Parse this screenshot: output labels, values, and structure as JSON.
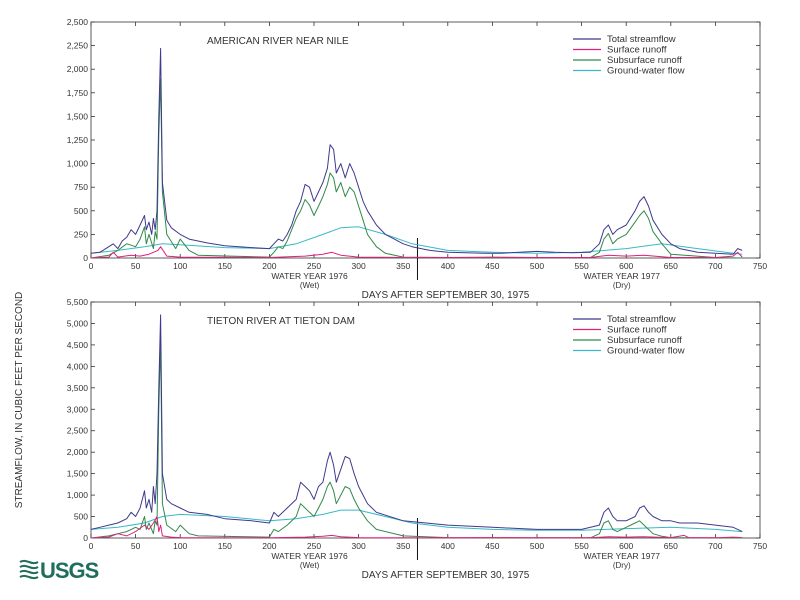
{
  "y_axis_label": "STREAMFLOW, IN CUBIC FEET PER SECOND",
  "logo": "USGS",
  "colors": {
    "total": "#3f3a8c",
    "surface": "#e0207a",
    "subsurface": "#2f8a4a",
    "groundwater": "#3ab8c8",
    "axis": "#333333",
    "logo": "#1f6e5a"
  },
  "chart_data": [
    {
      "type": "line",
      "title": "AMERICAN RIVER NEAR NILE",
      "xlabel": "DAYS AFTER SEPTEMBER 30, 1975",
      "ylabel": "STREAMFLOW, IN CUBIC FEET PER SECOND",
      "xlim": [
        0,
        750
      ],
      "ylim": [
        0,
        2500
      ],
      "xticks": [
        "0",
        "50",
        "100",
        "150",
        "200",
        "250",
        "300",
        "350",
        "400",
        "450",
        "500",
        "550",
        "600",
        "650",
        "700",
        "750"
      ],
      "yticks": [
        "0",
        "250",
        "500",
        "750",
        "1,000",
        "1,250",
        "1,500",
        "1,750",
        "2,000",
        "2,250",
        "2,500"
      ],
      "water_year_labels": [
        {
          "text": "WATER YEAR 1976",
          "sub": "(Wet)",
          "x": 245
        },
        {
          "text": "WATER YEAR 1977",
          "sub": "(Dry)",
          "x": 595
        }
      ],
      "divider_x": 366,
      "legend_position": "top-right",
      "series": [
        {
          "name": "Total streamflow",
          "color": "total",
          "x": [
            0,
            10,
            20,
            25,
            30,
            35,
            40,
            45,
            50,
            55,
            60,
            62,
            65,
            68,
            70,
            72,
            74,
            76,
            78,
            80,
            85,
            90,
            100,
            110,
            130,
            150,
            180,
            200,
            205,
            210,
            215,
            220,
            225,
            230,
            235,
            240,
            245,
            250,
            255,
            260,
            265,
            268,
            272,
            275,
            280,
            285,
            290,
            295,
            300,
            305,
            310,
            320,
            330,
            340,
            350,
            360,
            370,
            380,
            390,
            400,
            420,
            440,
            460,
            480,
            500,
            520,
            540,
            560,
            570,
            575,
            580,
            585,
            590,
            600,
            610,
            615,
            620,
            625,
            630,
            640,
            650,
            660,
            680,
            700,
            720,
            725,
            730
          ],
          "y": [
            50,
            60,
            120,
            150,
            100,
            180,
            220,
            300,
            250,
            350,
            450,
            300,
            380,
            250,
            420,
            300,
            500,
            1500,
            2220,
            800,
            400,
            320,
            250,
            200,
            160,
            130,
            110,
            100,
            150,
            200,
            180,
            250,
            350,
            500,
            600,
            780,
            750,
            600,
            700,
            800,
            950,
            1200,
            1150,
            900,
            1000,
            850,
            1000,
            900,
            750,
            600,
            500,
            350,
            250,
            200,
            150,
            120,
            100,
            80,
            70,
            60,
            55,
            50,
            50,
            60,
            70,
            60,
            55,
            60,
            150,
            300,
            350,
            250,
            300,
            350,
            500,
            600,
            650,
            550,
            400,
            250,
            150,
            100,
            60,
            50,
            40,
            100,
            80
          ]
        },
        {
          "name": "Surface runoff",
          "color": "surface",
          "x": [
            0,
            20,
            25,
            30,
            45,
            55,
            65,
            75,
            78,
            85,
            100,
            200,
            240,
            260,
            270,
            280,
            300,
            350,
            400,
            450,
            500,
            560,
            580,
            600,
            620,
            650,
            700,
            720,
            725,
            730
          ],
          "y": [
            0,
            10,
            60,
            10,
            30,
            20,
            40,
            80,
            120,
            20,
            10,
            5,
            20,
            40,
            60,
            30,
            10,
            5,
            5,
            10,
            5,
            5,
            30,
            20,
            30,
            5,
            5,
            20,
            60,
            10
          ]
        },
        {
          "name": "Subsurface runoff",
          "color": "subsurface",
          "x": [
            0,
            20,
            30,
            40,
            50,
            55,
            60,
            62,
            65,
            70,
            72,
            74,
            76,
            78,
            80,
            85,
            95,
            100,
            110,
            120,
            200,
            205,
            210,
            215,
            220,
            225,
            230,
            235,
            240,
            245,
            250,
            255,
            260,
            265,
            268,
            272,
            275,
            280,
            285,
            290,
            295,
            300,
            305,
            310,
            320,
            330,
            350,
            400,
            500,
            560,
            570,
            575,
            580,
            585,
            590,
            600,
            610,
            615,
            620,
            625,
            630,
            640,
            650,
            700,
            730
          ],
          "y": [
            0,
            30,
            80,
            150,
            120,
            200,
            330,
            150,
            250,
            100,
            280,
            200,
            1300,
            1900,
            700,
            250,
            100,
            200,
            80,
            30,
            10,
            60,
            120,
            100,
            180,
            300,
            420,
            500,
            620,
            560,
            450,
            550,
            650,
            780,
            900,
            850,
            700,
            800,
            650,
            750,
            700,
            550,
            400,
            250,
            120,
            50,
            10,
            5,
            5,
            5,
            60,
            200,
            260,
            150,
            200,
            250,
            380,
            450,
            500,
            420,
            280,
            150,
            40,
            5,
            0
          ]
        },
        {
          "name": "Ground-water flow",
          "color": "groundwater",
          "x": [
            0,
            30,
            60,
            80,
            100,
            150,
            200,
            230,
            260,
            280,
            300,
            330,
            360,
            400,
            450,
            500,
            550,
            600,
            640,
            680,
            720,
            730
          ],
          "y": [
            50,
            80,
            120,
            150,
            140,
            110,
            100,
            150,
            250,
            320,
            330,
            250,
            150,
            80,
            60,
            50,
            60,
            100,
            150,
            100,
            50,
            40
          ]
        }
      ]
    },
    {
      "type": "line",
      "title": "TIETON RIVER AT TIETON DAM",
      "xlabel": "DAYS AFTER SEPTEMBER 30, 1975",
      "ylabel": "STREAMFLOW, IN CUBIC FEET PER SECOND",
      "xlim": [
        0,
        750
      ],
      "ylim": [
        0,
        5500
      ],
      "xticks": [
        "0",
        "50",
        "100",
        "150",
        "200",
        "250",
        "300",
        "350",
        "400",
        "450",
        "500",
        "550",
        "600",
        "650",
        "700",
        "750"
      ],
      "yticks": [
        "0",
        "500",
        "1,000",
        "1,500",
        "2,000",
        "2,500",
        "3,000",
        "3,500",
        "4,000",
        "4,500",
        "5,000",
        "5,500"
      ],
      "water_year_labels": [
        {
          "text": "WATER YEAR 1976",
          "sub": "(Wet)",
          "x": 245
        },
        {
          "text": "WATER YEAR 1977",
          "sub": "(Dry)",
          "x": 595
        }
      ],
      "divider_x": 366,
      "legend_position": "top-right",
      "series": [
        {
          "name": "Total streamflow",
          "color": "total",
          "x": [
            0,
            10,
            20,
            30,
            40,
            45,
            50,
            55,
            60,
            62,
            65,
            68,
            70,
            72,
            74,
            76,
            78,
            80,
            85,
            90,
            100,
            110,
            130,
            150,
            180,
            200,
            205,
            210,
            220,
            230,
            235,
            240,
            245,
            250,
            255,
            260,
            265,
            268,
            272,
            275,
            280,
            285,
            290,
            295,
            300,
            310,
            320,
            350,
            400,
            450,
            500,
            550,
            570,
            575,
            580,
            585,
            590,
            600,
            610,
            615,
            620,
            625,
            630,
            640,
            650,
            660,
            680,
            700,
            720,
            725,
            730
          ],
          "y": [
            200,
            250,
            300,
            350,
            450,
            600,
            500,
            700,
            1100,
            700,
            900,
            600,
            1200,
            800,
            1500,
            3500,
            5200,
            1500,
            900,
            800,
            700,
            600,
            550,
            450,
            400,
            350,
            600,
            500,
            700,
            900,
            1300,
            1200,
            1100,
            900,
            1200,
            1300,
            1800,
            2000,
            1700,
            1300,
            1600,
            1900,
            1850,
            1500,
            1200,
            800,
            600,
            400,
            300,
            250,
            200,
            200,
            300,
            600,
            700,
            500,
            400,
            400,
            500,
            700,
            750,
            600,
            500,
            400,
            400,
            350,
            350,
            300,
            250,
            200,
            150
          ]
        },
        {
          "name": "Surface runoff",
          "color": "surface",
          "x": [
            0,
            20,
            30,
            40,
            50,
            60,
            65,
            70,
            74,
            76,
            78,
            80,
            90,
            100,
            150,
            200,
            240,
            260,
            270,
            280,
            300,
            350,
            400,
            450,
            500,
            560,
            580,
            600,
            620,
            650,
            665,
            670,
            700,
            720,
            730
          ],
          "y": [
            0,
            20,
            100,
            50,
            150,
            300,
            200,
            350,
            500,
            150,
            300,
            50,
            20,
            10,
            5,
            5,
            20,
            40,
            60,
            30,
            10,
            5,
            5,
            10,
            5,
            5,
            30,
            20,
            30,
            10,
            60,
            10,
            5,
            20,
            10
          ]
        },
        {
          "name": "Subsurface runoff",
          "color": "subsurface",
          "x": [
            0,
            20,
            30,
            40,
            50,
            55,
            60,
            62,
            65,
            70,
            72,
            74,
            76,
            78,
            80,
            85,
            95,
            100,
            110,
            120,
            200,
            205,
            210,
            220,
            230,
            235,
            240,
            245,
            250,
            255,
            260,
            265,
            268,
            272,
            275,
            280,
            285,
            290,
            295,
            300,
            310,
            320,
            350,
            400,
            500,
            560,
            570,
            575,
            580,
            585,
            590,
            600,
            610,
            615,
            620,
            625,
            630,
            640,
            650,
            700,
            730
          ],
          "y": [
            0,
            50,
            100,
            150,
            250,
            200,
            500,
            200,
            350,
            100,
            400,
            300,
            3000,
            4600,
            800,
            300,
            150,
            300,
            100,
            50,
            20,
            200,
            150,
            300,
            500,
            800,
            700,
            600,
            500,
            700,
            900,
            1200,
            1300,
            1100,
            800,
            1000,
            1200,
            1150,
            900,
            700,
            400,
            200,
            50,
            10,
            5,
            5,
            100,
            350,
            400,
            200,
            150,
            250,
            350,
            400,
            300,
            200,
            100,
            40,
            10,
            5,
            0
          ]
        },
        {
          "name": "Ground-water flow",
          "color": "groundwater",
          "x": [
            0,
            30,
            60,
            80,
            100,
            150,
            200,
            230,
            260,
            280,
            300,
            330,
            360,
            400,
            450,
            500,
            550,
            600,
            650,
            700,
            730
          ],
          "y": [
            200,
            250,
            350,
            500,
            550,
            500,
            400,
            450,
            550,
            650,
            650,
            500,
            350,
            250,
            200,
            180,
            180,
            220,
            250,
            200,
            150
          ]
        }
      ]
    }
  ]
}
